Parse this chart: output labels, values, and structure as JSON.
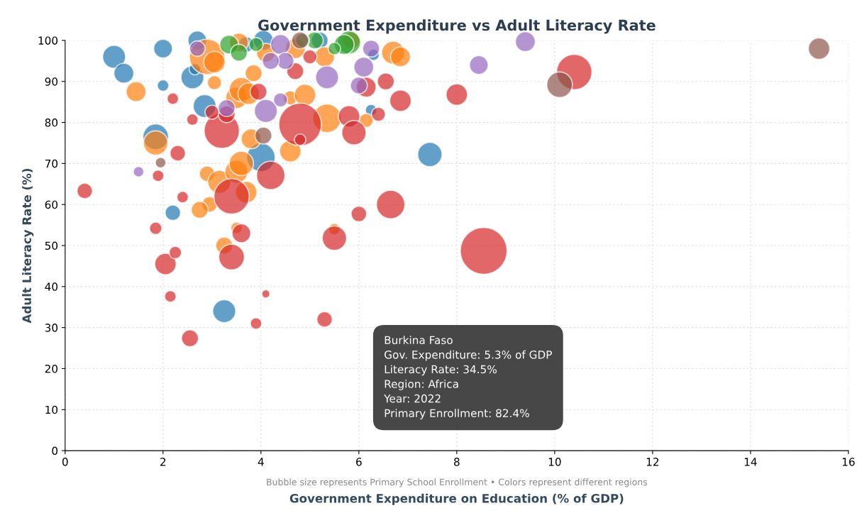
{
  "chart_data": {
    "type": "bubble",
    "title": "Government Expenditure vs Adult Literacy Rate",
    "xlabel": "Government Expenditure on Education (% of GDP)",
    "ylabel": "Adult Literacy Rate (%)",
    "annotations": [
      "Bubble size represents Primary School Enrollment • Colors represent different regions",
      "Burkina Faso\nGov. Expenditure: 5.3% of GDP\nLiteracy Rate: 34.5%\nRegion: Africa\nYear: 2022\nPrimary Enrollment: 82.4%"
    ],
    "xlim": [
      0,
      16
    ],
    "ylim": [
      0,
      100
    ],
    "xticks": [
      0,
      2,
      4,
      6,
      8,
      10,
      12,
      14,
      16
    ],
    "yticks": [
      0,
      10,
      20,
      30,
      40,
      50,
      60,
      70,
      80,
      90,
      100
    ],
    "grid": true,
    "legend": false,
    "series": [
      {
        "color": "#1f77b4",
        "x": [
          1.0,
          1.2,
          2.0,
          2.0,
          2.6,
          2.65,
          2.7,
          2.85,
          1.85,
          2.2,
          3.25,
          4.0,
          7.45,
          6.25,
          6.3,
          3.7,
          5.2,
          4.05
        ],
        "values": [
          96,
          92,
          98,
          89,
          91,
          93,
          100,
          84,
          76.5,
          58,
          34,
          71.5,
          72.2,
          83,
          96.5,
          99,
          100,
          100
        ],
        "sizes": [
          0.24,
          0.18,
          0.16,
          0.06,
          0.24,
          0.06,
          0.16,
          0.24,
          0.3,
          0.11,
          0.24,
          0.37,
          0.27,
          0.06,
          0.06,
          0.11,
          0.13,
          0.18
        ]
      },
      {
        "color": "#ff7f0e",
        "x": [
          1.45,
          1.85,
          2.9,
          3.05,
          2.9,
          2.95,
          2.75,
          3.05,
          3.15,
          3.25,
          3.5,
          3.5,
          3.6,
          3.7,
          3.8,
          3.5,
          3.6,
          3.75,
          3.85,
          4.6,
          4.6,
          4.9,
          5.35,
          5.5,
          6.15,
          6.7,
          6.85,
          4.1,
          4.7,
          3.55,
          5.85,
          5.3
        ],
        "values": [
          87.5,
          75,
          96,
          94.7,
          67.5,
          60,
          58.7,
          89.7,
          65.5,
          50,
          54.3,
          68,
          70,
          63,
          76,
          86,
          88,
          87,
          92,
          73,
          86,
          86.7,
          81,
          54,
          80.5,
          97,
          96,
          97,
          98,
          99.5,
          100,
          96
        ],
        "sizes": [
          0.18,
          0.27,
          0.57,
          0.21,
          0.11,
          0.11,
          0.13,
          0.09,
          0.24,
          0.13,
          0.06,
          0.24,
          0.27,
          0.21,
          0.18,
          0.21,
          0.27,
          0.21,
          0.13,
          0.21,
          0.09,
          0.21,
          0.37,
          0.06,
          0.09,
          0.24,
          0.18,
          0.16,
          0.18,
          0.16,
          0.13,
          0.18
        ]
      },
      {
        "color": "#2ca02c",
        "x": [
          3.35,
          3.55,
          5.8,
          5.7,
          5.1,
          4.85,
          3.9,
          5.5
        ],
        "values": [
          99,
          97,
          99.5,
          99,
          100,
          100,
          99,
          98
        ],
        "sizes": [
          0.16,
          0.13,
          0.24,
          0.18,
          0.13,
          0.09,
          0.09,
          0.07
        ]
      },
      {
        "color": "#d62728",
        "x": [
          0.4,
          1.85,
          1.9,
          2.05,
          2.15,
          2.25,
          2.2,
          2.3,
          2.4,
          2.55,
          2.6,
          3.2,
          3.3,
          3.4,
          3.4,
          3.6,
          3.9,
          4.1,
          4.2,
          3.95,
          4.8,
          4.8,
          4.7,
          5.5,
          5.3,
          5.8,
          5.9,
          6.0,
          6.15,
          6.4,
          6.55,
          6.65,
          6.85,
          8.0,
          8.55,
          10.4,
          5.0,
          3.0
        ],
        "values": [
          63.3,
          54.2,
          67,
          45.5,
          37.6,
          48.3,
          85.8,
          72.5,
          61.8,
          27.4,
          80.7,
          78,
          82,
          62,
          47.2,
          53,
          31,
          38.2,
          67.1,
          87.5,
          79.5,
          75.8,
          92.5,
          51.8,
          32,
          81.5,
          77.5,
          57.7,
          88.6,
          82,
          90,
          60,
          85.3,
          86.8,
          48.7,
          92.3,
          96,
          82.5
        ],
        "sizes": [
          0.11,
          0.07,
          0.06,
          0.21,
          0.06,
          0.07,
          0.06,
          0.11,
          0.06,
          0.13,
          0.06,
          0.57,
          0.13,
          0.57,
          0.3,
          0.16,
          0.06,
          0.03,
          0.37,
          0.13,
          0.83,
          0.06,
          0.13,
          0.27,
          0.11,
          0.21,
          0.27,
          0.11,
          0.18,
          0.09,
          0.13,
          0.37,
          0.21,
          0.21,
          1,
          0.57,
          0.09,
          0.09
        ]
      },
      {
        "color": "#9467bd",
        "x": [
          1.5,
          2.7,
          3.3,
          4.1,
          4.4,
          4.4,
          5.35,
          6.0,
          6.1,
          6.25,
          8.45,
          9.4,
          4.5,
          4.2
        ],
        "values": [
          68,
          98,
          83.5,
          82.8,
          85.5,
          99,
          91,
          89,
          93.5,
          98,
          94,
          99.7,
          95,
          95
        ],
        "sizes": [
          0.05,
          0.11,
          0.13,
          0.24,
          0.09,
          0.18,
          0.24,
          0.13,
          0.18,
          0.13,
          0.16,
          0.18,
          0.13,
          0.13
        ]
      },
      {
        "color": "#8c564b",
        "x": [
          1.95,
          4.05,
          10.1,
          15.4,
          4.8
        ],
        "values": [
          70.2,
          76.8,
          89.2,
          98,
          100
        ],
        "sizes": [
          0.05,
          0.13,
          0.3,
          0.21,
          0.13
        ]
      }
    ]
  }
}
